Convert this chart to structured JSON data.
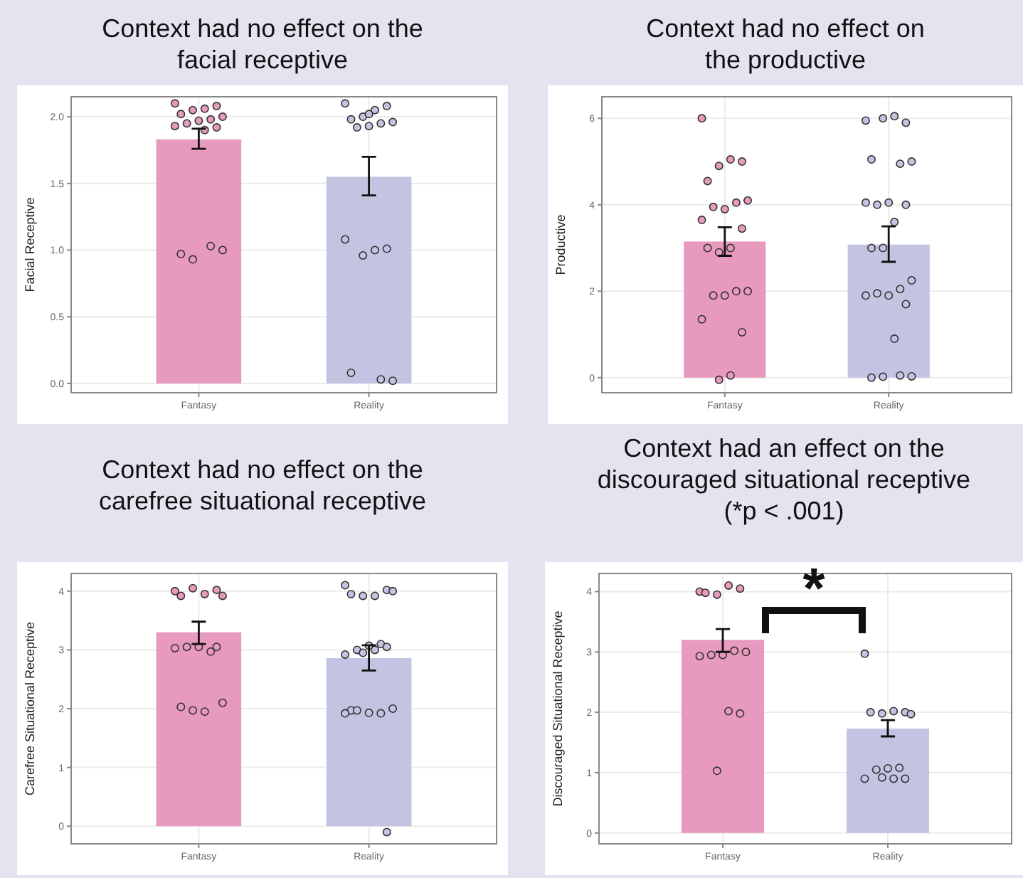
{
  "chart_data": [
    {
      "type": "bar",
      "title": "Context had no effect on the facial receptive",
      "ylabel": "Facial Receptive",
      "categories": [
        "Fantasy",
        "Reality"
      ],
      "ylim": [
        -0.07,
        2.15
      ],
      "yticks": [
        {
          "value": 0,
          "label": "0.0"
        },
        {
          "value": 0.5,
          "label": "0.5"
        },
        {
          "value": 1,
          "label": "1.0"
        },
        {
          "value": 1.5,
          "label": "1.5"
        },
        {
          "value": 2,
          "label": "2.0"
        }
      ],
      "grid": true,
      "marker": "circle",
      "series": [
        {
          "type": "bar",
          "values": [
            1.83,
            1.55
          ],
          "colors": [
            "#e899be",
            "#c3c3e2"
          ],
          "errors": [
            [
              1.76,
              1.91
            ],
            [
              1.41,
              1.7
            ]
          ]
        },
        {
          "type": "scatter",
          "color": "#e899be",
          "x": [
            "Fantasy",
            "Fantasy",
            "Fantasy",
            "Fantasy",
            "Fantasy",
            "Fantasy",
            "Fantasy",
            "Fantasy",
            "Fantasy",
            "Fantasy",
            "Fantasy",
            "Fantasy",
            "Fantasy",
            "Fantasy",
            "Fantasy",
            "Fantasy"
          ],
          "values": [
            2.1,
            2.08,
            2.06,
            2.05,
            2.02,
            2.0,
            1.98,
            1.97,
            1.95,
            1.93,
            1.92,
            1.9,
            0.93,
            0.97,
            1.0,
            1.03
          ]
        },
        {
          "type": "scatter",
          "color": "#c3c3e2",
          "x": [
            "Reality",
            "Reality",
            "Reality",
            "Reality",
            "Reality",
            "Reality",
            "Reality",
            "Reality",
            "Reality",
            "Reality",
            "Reality",
            "Reality",
            "Reality",
            "Reality",
            "Reality",
            "Reality",
            "Reality"
          ],
          "values": [
            2.1,
            2.08,
            2.05,
            2.0,
            1.98,
            1.96,
            1.95,
            1.93,
            1.92,
            1.08,
            1.01,
            1.0,
            0.96,
            0.08,
            0.02,
            0.03,
            2.02
          ]
        }
      ]
    },
    {
      "type": "bar",
      "title": "Context had no effect on the productive",
      "ylabel": "Productive",
      "categories": [
        "Fantasy",
        "Reality"
      ],
      "ylim": [
        -0.35,
        6.5
      ],
      "yticks": [
        0,
        2,
        4,
        6
      ],
      "grid": true,
      "marker": "circle",
      "series": [
        {
          "type": "bar",
          "values": [
            3.15,
            3.08
          ],
          "colors": [
            "#e899be",
            "#c3c3e2"
          ],
          "errors": [
            [
              2.82,
              3.48
            ],
            [
              2.68,
              3.5
            ]
          ]
        },
        {
          "type": "scatter",
          "color": "#e899be",
          "x": [
            "Fantasy",
            "Fantasy",
            "Fantasy",
            "Fantasy",
            "Fantasy",
            "Fantasy",
            "Fantasy",
            "Fantasy",
            "Fantasy",
            "Fantasy",
            "Fantasy",
            "Fantasy",
            "Fantasy",
            "Fantasy",
            "Fantasy",
            "Fantasy",
            "Fantasy",
            "Fantasy",
            "Fantasy",
            "Fantasy",
            "Fantasy",
            "Fantasy"
          ],
          "values": [
            6.0,
            5.0,
            5.05,
            4.9,
            4.55,
            4.1,
            4.05,
            3.9,
            3.95,
            3.65,
            3.45,
            3.0,
            2.9,
            3.0,
            2.0,
            2.0,
            1.9,
            1.9,
            1.35,
            1.05,
            0.05,
            -0.05
          ]
        },
        {
          "type": "scatter",
          "color": "#c3c3e2",
          "x": [
            "Reality",
            "Reality",
            "Reality",
            "Reality",
            "Reality",
            "Reality",
            "Reality",
            "Reality",
            "Reality",
            "Reality",
            "Reality",
            "Reality",
            "Reality",
            "Reality",
            "Reality",
            "Reality",
            "Reality",
            "Reality",
            "Reality",
            "Reality",
            "Reality",
            "Reality",
            "Reality",
            "Reality",
            "Reality"
          ],
          "values": [
            5.95,
            5.9,
            6.05,
            6.0,
            5.05,
            5.0,
            4.95,
            4.05,
            4.0,
            4.05,
            4.0,
            3.6,
            3.0,
            3.0,
            2.25,
            2.05,
            1.9,
            1.95,
            1.9,
            1.7,
            0.9,
            0.02,
            0.0,
            0.03,
            0.05
          ]
        }
      ]
    },
    {
      "type": "bar",
      "title": "Context had no effect on the carefree situational receptive",
      "ylabel": "Carefree Situational Receptive",
      "categories": [
        "Fantasy",
        "Reality"
      ],
      "ylim": [
        -0.3,
        4.3
      ],
      "yticks": [
        0,
        1,
        2,
        3,
        4
      ],
      "grid": true,
      "marker": "circle",
      "series": [
        {
          "type": "bar",
          "values": [
            3.3,
            2.86
          ],
          "colors": [
            "#e899be",
            "#c3c3e2"
          ],
          "errors": [
            [
              3.1,
              3.48
            ],
            [
              2.65,
              3.08
            ]
          ]
        },
        {
          "type": "scatter",
          "color": "#e899be",
          "x": [
            "Fantasy",
            "Fantasy",
            "Fantasy",
            "Fantasy",
            "Fantasy",
            "Fantasy",
            "Fantasy",
            "Fantasy",
            "Fantasy",
            "Fantasy",
            "Fantasy",
            "Fantasy",
            "Fantasy",
            "Fantasy",
            "Fantasy"
          ],
          "values": [
            4.0,
            4.02,
            3.95,
            4.05,
            3.92,
            3.92,
            2.97,
            3.05,
            3.05,
            3.03,
            3.05,
            1.95,
            1.97,
            2.03,
            2.1
          ]
        },
        {
          "type": "scatter",
          "color": "#c3c3e2",
          "x": [
            "Reality",
            "Reality",
            "Reality",
            "Reality",
            "Reality",
            "Reality",
            "Reality",
            "Reality",
            "Reality",
            "Reality",
            "Reality",
            "Reality",
            "Reality",
            "Reality",
            "Reality",
            "Reality",
            "Reality",
            "Reality",
            "Reality",
            "Reality"
          ],
          "values": [
            4.1,
            4.02,
            3.92,
            3.92,
            3.95,
            4.0,
            3.1,
            3.07,
            3.0,
            2.92,
            3.05,
            3.0,
            2.95,
            1.97,
            2.0,
            1.92,
            1.93,
            1.97,
            1.92,
            -0.1
          ]
        }
      ]
    },
    {
      "type": "bar",
      "title": "Context had an effect on the discouraged situational receptive (*p < .001)",
      "ylabel": "Discouraged Situational Receptive",
      "categories": [
        "Fantasy",
        "Reality"
      ],
      "ylim": [
        -0.18,
        4.3
      ],
      "yticks": [
        0,
        1,
        2,
        3,
        4
      ],
      "grid": true,
      "marker": "circle",
      "annotations": [
        "*"
      ],
      "series": [
        {
          "type": "bar",
          "values": [
            3.2,
            1.73
          ],
          "colors": [
            "#e899be",
            "#c3c3e2"
          ],
          "errors": [
            [
              3.0,
              3.38
            ],
            [
              1.6,
              1.87
            ]
          ]
        },
        {
          "type": "scatter",
          "color": "#e899be",
          "x": [
            "Fantasy",
            "Fantasy",
            "Fantasy",
            "Fantasy",
            "Fantasy",
            "Fantasy",
            "Fantasy",
            "Fantasy",
            "Fantasy",
            "Fantasy",
            "Fantasy",
            "Fantasy",
            "Fantasy"
          ],
          "values": [
            4.0,
            4.05,
            4.1,
            3.95,
            3.98,
            3.0,
            3.02,
            2.95,
            2.95,
            2.93,
            1.98,
            2.02,
            1.03
          ]
        },
        {
          "type": "scatter",
          "color": "#c3c3e2",
          "x": [
            "Reality",
            "Reality",
            "Reality",
            "Reality",
            "Reality",
            "Reality",
            "Reality",
            "Reality",
            "Reality",
            "Reality",
            "Reality",
            "Reality",
            "Reality"
          ],
          "values": [
            2.97,
            2.0,
            2.02,
            1.98,
            2.0,
            1.97,
            1.08,
            1.07,
            1.05,
            0.9,
            0.9,
            0.9,
            0.92
          ]
        }
      ]
    }
  ]
}
